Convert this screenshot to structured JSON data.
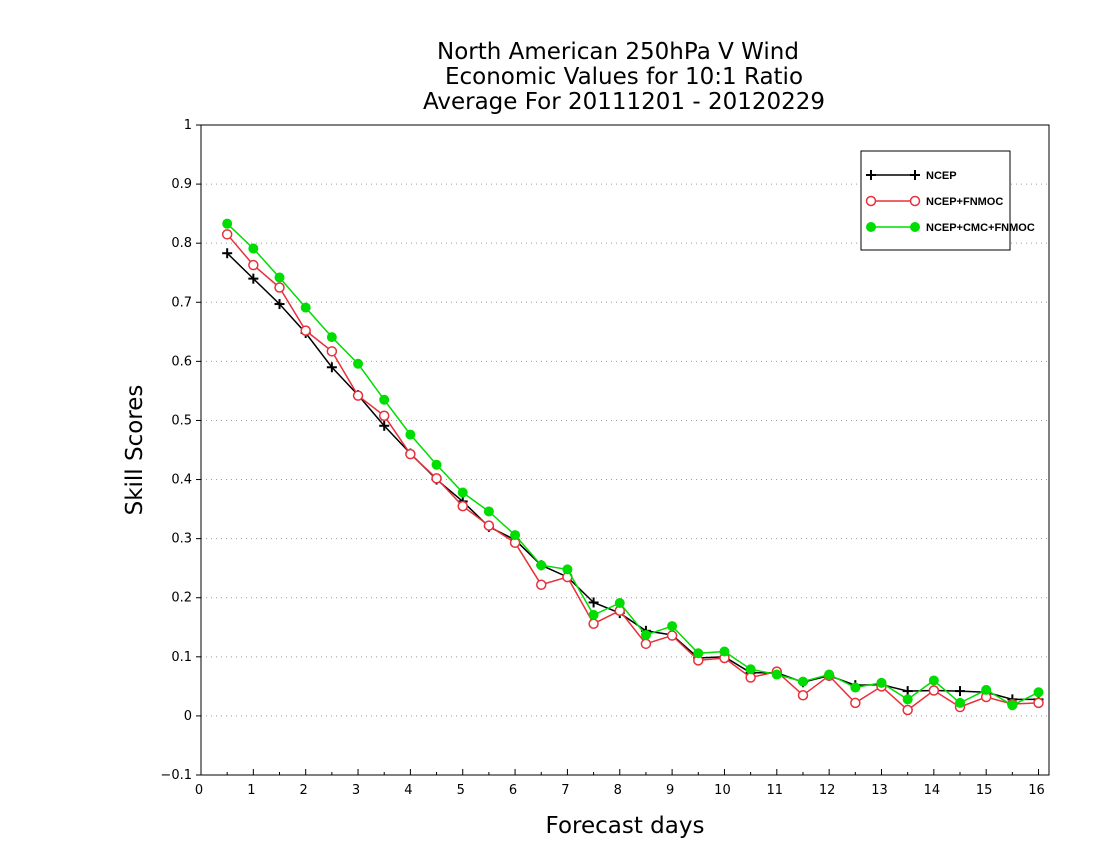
{
  "chart_data": {
    "type": "line",
    "title": [
      "North American 250hPa V Wind",
      "Economic Values for 10:1 Ratio",
      "Average For 20111201 - 20120229"
    ],
    "xlabel": "Forecast days",
    "ylabel": "Skill Scores",
    "xlim": [
      0,
      16.2
    ],
    "ylim": [
      -0.1,
      1
    ],
    "xticks": [
      0,
      1,
      2,
      3,
      4,
      5,
      6,
      7,
      8,
      9,
      10,
      11,
      12,
      13,
      14,
      15,
      16
    ],
    "xtick_labels": [
      "0",
      "1",
      "2",
      "3",
      "4",
      "5",
      "6",
      "7",
      "8",
      "9",
      "10",
      "11",
      "12",
      "13",
      "14",
      "15",
      "16"
    ],
    "yticks": [
      -0.1,
      0,
      0.1,
      0.2,
      0.3,
      0.4,
      0.5,
      0.6,
      0.7,
      0.8,
      0.9,
      1
    ],
    "ytick_labels": [
      "−0.1",
      "0",
      "0.1",
      "0.2",
      "0.3",
      "0.4",
      "0.5",
      "0.6",
      "0.7",
      "0.8",
      "0.9",
      "1"
    ],
    "grid": "horizontal dotted",
    "legend_position": "top-right",
    "x": [
      0.5,
      1,
      1.5,
      2,
      2.5,
      3,
      3.5,
      4,
      4.5,
      5,
      5.5,
      6,
      6.5,
      7,
      7.5,
      8,
      8.5,
      9,
      9.5,
      10,
      10.5,
      11,
      11.5,
      12,
      12.5,
      13,
      13.5,
      14,
      14.5,
      15,
      15.5,
      16
    ],
    "series": [
      {
        "name": "NCEP",
        "color": "#000000",
        "marker": "plus",
        "values": [
          0.783,
          0.74,
          0.697,
          0.648,
          0.59,
          0.543,
          0.491,
          0.444,
          0.4,
          0.363,
          0.32,
          0.298,
          0.255,
          0.235,
          0.192,
          0.174,
          0.144,
          0.137,
          0.098,
          0.1,
          0.073,
          0.073,
          0.057,
          0.068,
          0.052,
          0.053,
          0.042,
          0.043,
          0.042,
          0.04,
          0.028,
          0.028
        ]
      },
      {
        "name": "NCEP+FNMOC",
        "color": "#e8303a",
        "marker": "open-circle",
        "values": [
          0.815,
          0.763,
          0.725,
          0.652,
          0.617,
          0.542,
          0.508,
          0.443,
          0.402,
          0.355,
          0.322,
          0.293,
          0.222,
          0.235,
          0.156,
          0.178,
          0.122,
          0.136,
          0.094,
          0.098,
          0.065,
          0.075,
          0.035,
          0.068,
          0.022,
          0.05,
          0.01,
          0.043,
          0.015,
          0.032,
          0.02,
          0.022
        ]
      },
      {
        "name": "NCEP+CMC+FNMOC",
        "color": "#00dd00",
        "marker": "filled-circle",
        "values": [
          0.833,
          0.791,
          0.742,
          0.691,
          0.641,
          0.596,
          0.535,
          0.476,
          0.425,
          0.378,
          0.346,
          0.306,
          0.255,
          0.248,
          0.171,
          0.191,
          0.137,
          0.152,
          0.106,
          0.109,
          0.079,
          0.07,
          0.058,
          0.07,
          0.048,
          0.056,
          0.028,
          0.06,
          0.022,
          0.044,
          0.018,
          0.04
        ]
      }
    ]
  }
}
